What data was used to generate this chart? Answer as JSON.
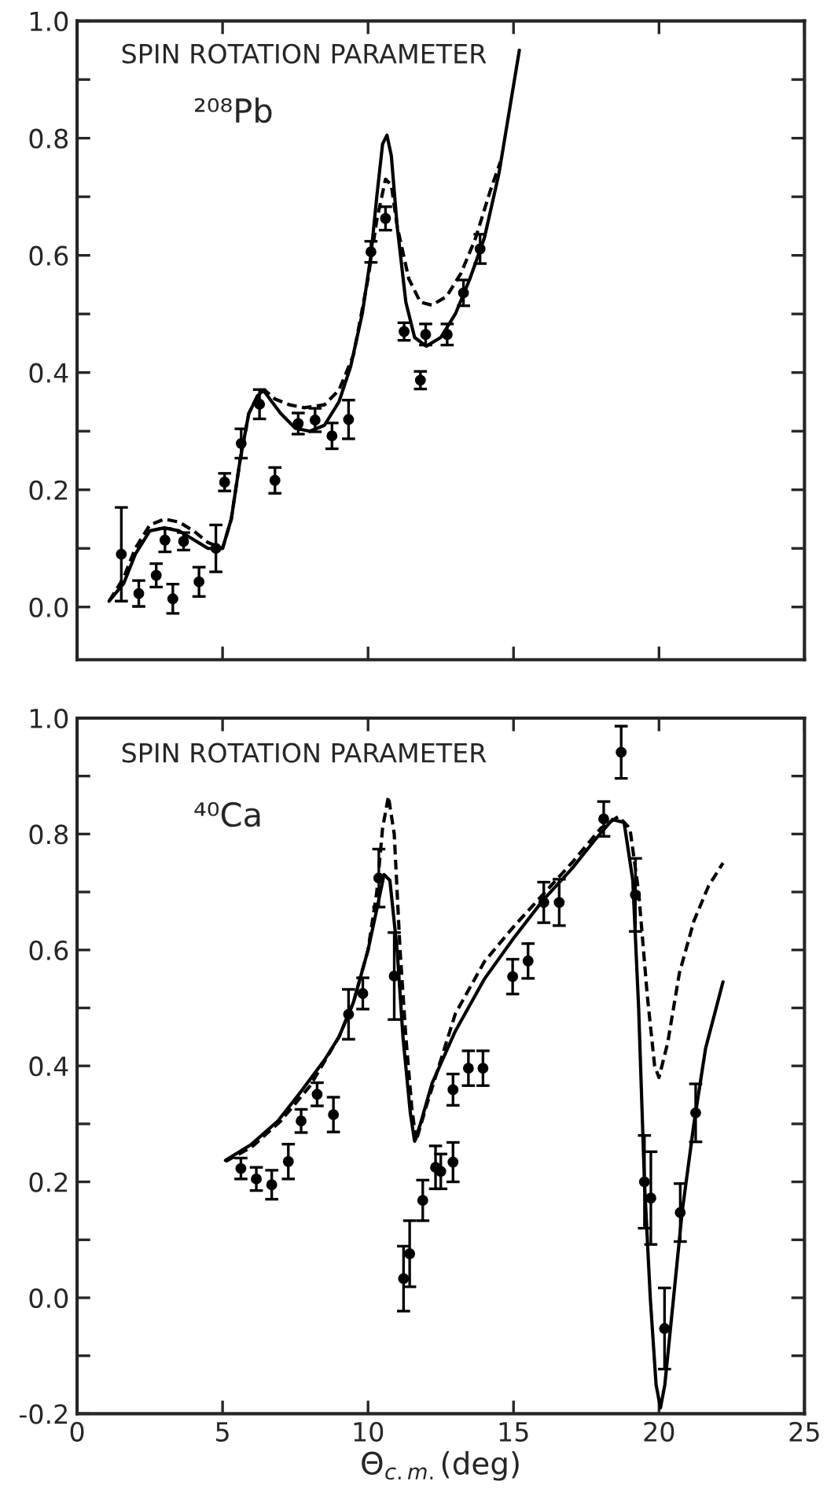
{
  "chart_data": [
    {
      "type": "scatter",
      "title": "SPIN ROTATION PARAMETER",
      "subtitle": "²⁰⁸Pb",
      "xlim": [
        0,
        25
      ],
      "ylim": [
        -0.09,
        1.0
      ],
      "xticks": [
        0,
        5,
        10,
        15,
        20,
        25
      ],
      "yticks": [
        {
          "value": 0,
          "label": "0.0"
        },
        {
          "value": 0.1,
          "label": null
        },
        0.2,
        {
          "value": 0.3,
          "label": null
        },
        0.4,
        {
          "value": 0.5,
          "label": null
        },
        0.6,
        {
          "value": 0.7,
          "label": null
        },
        0.8,
        {
          "value": 0.9,
          "label": null
        },
        {
          "value": 1,
          "label": "1.0"
        }
      ],
      "tick_labels": "y",
      "series": [
        {
          "color": "#000000",
          "marker": "circle",
          "x": [
            1.52,
            2.12,
            2.72,
            3.02,
            3.29,
            3.66,
            4.19,
            4.77,
            5.07,
            5.64,
            6.27,
            6.8,
            7.6,
            8.18,
            8.76,
            9.33,
            10.1,
            10.6,
            11.24,
            11.8,
            11.98,
            12.72,
            13.28,
            13.85
          ],
          "values": [
            0.09,
            0.023,
            0.054,
            0.114,
            0.014,
            0.112,
            0.043,
            0.1,
            0.213,
            0.279,
            0.346,
            0.216,
            0.313,
            0.319,
            0.292,
            0.32,
            0.606,
            0.663,
            0.47,
            0.387,
            0.465,
            0.465,
            0.536,
            0.611
          ],
          "errors": [
            0.08,
            0.022,
            0.02,
            0.02,
            0.025,
            0.015,
            0.025,
            0.04,
            0.015,
            0.025,
            0.025,
            0.022,
            0.018,
            0.02,
            0.022,
            0.033,
            0.018,
            0.02,
            0.015,
            0.015,
            0.018,
            0.018,
            0.022,
            0.025
          ]
        },
        {
          "type": "line",
          "color": "#000000",
          "line_style": "solid",
          "x": [
            1.1,
            1.6,
            2.0,
            2.5,
            3.0,
            3.5,
            4.0,
            4.5,
            5.0,
            5.3,
            5.6,
            5.9,
            6.2,
            6.4,
            6.7,
            7.0,
            7.5,
            8.0,
            8.5,
            9.0,
            9.4,
            9.8,
            10.1,
            10.3,
            10.5,
            10.65,
            10.8,
            11.0,
            11.3,
            11.6,
            12.0,
            12.5,
            13.0,
            13.5,
            14.0,
            14.5,
            14.8,
            15.2
          ],
          "values": [
            0.01,
            0.04,
            0.09,
            0.13,
            0.135,
            0.13,
            0.115,
            0.1,
            0.1,
            0.15,
            0.25,
            0.33,
            0.36,
            0.37,
            0.35,
            0.33,
            0.305,
            0.3,
            0.31,
            0.35,
            0.41,
            0.5,
            0.6,
            0.7,
            0.79,
            0.805,
            0.77,
            0.65,
            0.52,
            0.46,
            0.445,
            0.46,
            0.5,
            0.56,
            0.63,
            0.74,
            0.83,
            0.95
          ]
        },
        {
          "type": "line",
          "color": "#000000",
          "line_style": "dashed",
          "x": [
            1.1,
            1.6,
            2.0,
            2.5,
            3.0,
            3.5,
            4.0,
            4.5,
            5.0,
            5.3,
            5.6,
            5.9,
            6.2,
            6.45,
            6.8,
            7.3,
            7.8,
            8.5,
            9.0,
            9.5,
            10.0,
            10.3,
            10.6,
            10.8,
            11.0,
            11.4,
            11.8,
            12.2,
            12.7,
            13.2,
            13.7,
            14.2,
            14.55
          ],
          "values": [
            0.01,
            0.05,
            0.1,
            0.14,
            0.15,
            0.145,
            0.13,
            0.11,
            0.1,
            0.15,
            0.25,
            0.33,
            0.36,
            0.37,
            0.355,
            0.345,
            0.34,
            0.345,
            0.37,
            0.43,
            0.56,
            0.66,
            0.73,
            0.72,
            0.65,
            0.56,
            0.52,
            0.515,
            0.53,
            0.57,
            0.63,
            0.71,
            0.76
          ]
        }
      ]
    },
    {
      "type": "scatter",
      "title": "SPIN ROTATION PARAMETER",
      "subtitle": "⁴⁰Ca",
      "xlabel": "Θ$_{c.m.}$(deg)",
      "xlim": [
        0,
        25
      ],
      "ylim": [
        -0.2,
        1.0
      ],
      "xticks": [
        0,
        5,
        10,
        15,
        20,
        25
      ],
      "yticks": [
        -0.2,
        {
          "value": -0.1,
          "label": null
        },
        {
          "value": 0,
          "label": "0.0"
        },
        {
          "value": 0.1,
          "label": null
        },
        0.2,
        {
          "value": 0.3,
          "label": null
        },
        0.4,
        {
          "value": 0.5,
          "label": null
        },
        0.6,
        {
          "value": 0.7,
          "label": null
        },
        0.8,
        {
          "value": 0.9,
          "label": null
        },
        {
          "value": 1,
          "label": "1.0"
        }
      ],
      "series": [
        {
          "color": "#000000",
          "marker": "circle",
          "x": [
            5.63,
            6.16,
            6.69,
            7.26,
            7.7,
            8.25,
            8.81,
            9.33,
            9.82,
            10.37,
            10.9,
            11.22,
            11.43,
            11.88,
            12.32,
            12.5,
            12.92,
            12.92,
            13.45,
            13.95,
            14.97,
            15.5,
            16.04,
            16.57,
            18.1,
            18.7,
            19.19,
            19.5,
            19.72,
            20.19,
            20.73,
            21.26
          ],
          "values": [
            0.223,
            0.205,
            0.195,
            0.235,
            0.305,
            0.351,
            0.316,
            0.489,
            0.525,
            0.724,
            0.555,
            0.033,
            0.076,
            0.168,
            0.225,
            0.218,
            0.234,
            0.359,
            0.396,
            0.396,
            0.554,
            0.581,
            0.682,
            0.682,
            0.826,
            0.941,
            0.695,
            0.2,
            0.172,
            -0.053,
            0.147,
            0.319
          ],
          "errors": [
            0.018,
            0.02,
            0.025,
            0.03,
            0.02,
            0.02,
            0.03,
            0.043,
            0.027,
            0.05,
            0.075,
            0.056,
            0.057,
            0.035,
            0.037,
            0.03,
            0.034,
            0.027,
            0.03,
            0.03,
            0.03,
            0.03,
            0.035,
            0.04,
            0.03,
            0.045,
            0.063,
            0.08,
            0.08,
            0.07,
            0.05,
            0.05
          ]
        },
        {
          "type": "line",
          "color": "#000000",
          "line_style": "solid",
          "x": [
            5.1,
            6.0,
            6.9,
            7.7,
            8.5,
            9.0,
            9.5,
            10.0,
            10.3,
            10.55,
            10.75,
            11.0,
            11.2,
            11.45,
            11.6,
            11.8,
            12.2,
            13.0,
            14.0,
            15.0,
            16.0,
            17.0,
            17.8,
            18.4,
            18.8,
            19.1,
            19.3,
            19.5,
            19.7,
            19.9,
            20.05,
            20.2,
            20.5,
            20.8,
            21.2,
            21.6,
            22.2
          ],
          "values": [
            0.237,
            0.265,
            0.305,
            0.356,
            0.41,
            0.45,
            0.51,
            0.6,
            0.67,
            0.73,
            0.72,
            0.6,
            0.45,
            0.32,
            0.27,
            0.3,
            0.37,
            0.46,
            0.55,
            0.62,
            0.685,
            0.74,
            0.79,
            0.825,
            0.82,
            0.72,
            0.5,
            0.2,
            0.0,
            -0.15,
            -0.19,
            -0.15,
            0.0,
            0.15,
            0.3,
            0.43,
            0.545
          ]
        },
        {
          "type": "line",
          "color": "#000000",
          "line_style": "dashed",
          "x": [
            5.1,
            6.0,
            7.0,
            8.0,
            9.0,
            9.5,
            10.0,
            10.3,
            10.5,
            10.7,
            10.9,
            11.1,
            11.3,
            11.5,
            11.65,
            12.0,
            13.0,
            14.0,
            15.0,
            16.0,
            17.0,
            18.0,
            18.6,
            19.0,
            19.3,
            19.6,
            19.85,
            20.0,
            20.3,
            20.7,
            21.2,
            21.7,
            22.2
          ],
          "values": [
            0.235,
            0.26,
            0.305,
            0.365,
            0.45,
            0.51,
            0.6,
            0.7,
            0.81,
            0.865,
            0.8,
            0.6,
            0.45,
            0.33,
            0.27,
            0.33,
            0.49,
            0.58,
            0.64,
            0.695,
            0.75,
            0.81,
            0.83,
            0.81,
            0.7,
            0.52,
            0.4,
            0.38,
            0.44,
            0.56,
            0.65,
            0.71,
            0.75
          ]
        }
      ]
    }
  ]
}
